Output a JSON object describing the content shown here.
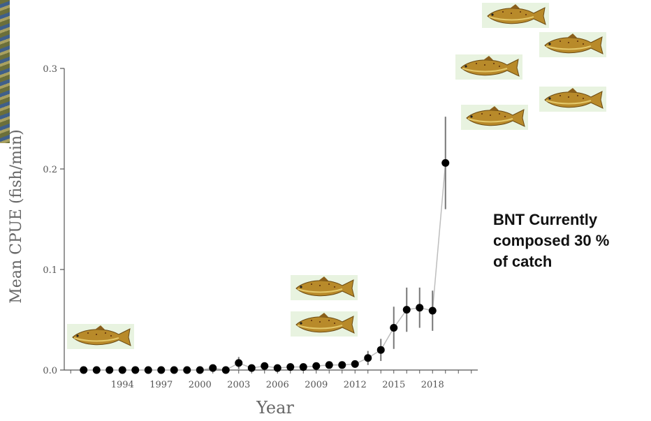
{
  "annotation": {
    "callout_text": "BNT Currently\ncomposed  30 %\nof catch"
  },
  "decor": {
    "fish_icon": "brown-trout-illustration",
    "photo_strip": "river-photo-edge"
  },
  "colors": {
    "points": "#000000",
    "line": "#bdbdbd",
    "error_bars": "#777777",
    "axis": "#555555",
    "fish_body": "#b88a2a",
    "fish_bg": "#e8f3e0"
  },
  "chart_data": {
    "type": "line",
    "title": "",
    "xlabel": "Year",
    "ylabel": "Mean CPUE (fish/min)",
    "xlim": [
      1989.5,
      2021.5
    ],
    "ylim": [
      0,
      0.3
    ],
    "x_ticks": [
      1994,
      1997,
      2000,
      2003,
      2006,
      2009,
      2012,
      2015,
      2018
    ],
    "x_tick_labels": [
      "1994",
      "1997",
      "2000",
      "2003",
      "2006",
      "2009",
      "2012",
      "2015",
      "2018"
    ],
    "y_ticks": [
      0.0,
      0.1,
      0.2,
      0.3
    ],
    "y_tick_labels": [
      "0.0",
      "0.1",
      "0.2",
      "0.3"
    ],
    "grid": false,
    "series": [
      {
        "x": [
          1991,
          1992,
          1993,
          1994,
          1995,
          1996,
          1997,
          1998,
          1999,
          2000,
          2001,
          2002,
          2003,
          2004,
          2005,
          2006,
          2007,
          2008,
          2009,
          2010,
          2011,
          2012,
          2013,
          2014,
          2015,
          2016,
          2017,
          2018,
          2019
        ],
        "y": [
          0.0,
          0.0,
          0.0,
          0.0,
          0.0,
          0.0,
          0.0,
          0.0,
          0.0,
          0.0,
          0.002,
          0.0,
          0.007,
          0.002,
          0.004,
          0.002,
          0.003,
          0.003,
          0.004,
          0.005,
          0.005,
          0.006,
          0.012,
          0.02,
          0.042,
          0.06,
          0.062,
          0.059,
          0.206
        ],
        "err": [
          0.0,
          0.0,
          0.0,
          0.0,
          0.0,
          0.0,
          0.0,
          0.0,
          0.0,
          0.0,
          0.001,
          0.0,
          0.006,
          0.001,
          0.002,
          0.001,
          0.002,
          0.002,
          0.002,
          0.002,
          0.002,
          0.003,
          0.007,
          0.011,
          0.021,
          0.022,
          0.02,
          0.02,
          0.046
        ]
      }
    ]
  }
}
